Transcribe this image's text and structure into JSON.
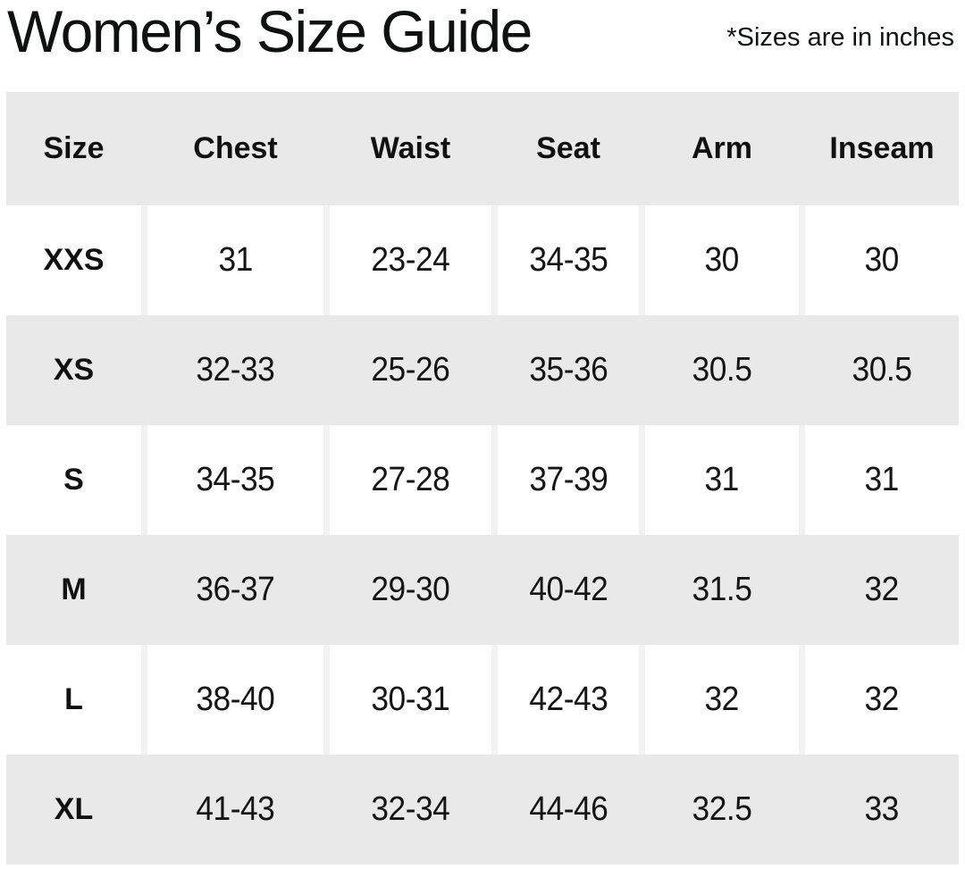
{
  "page": {
    "title": "Women’s Size Guide",
    "note": "*Sizes are in inches"
  },
  "colors": {
    "row_band_gray": "#e9e9e9",
    "column_gap_gray": "#f2f2f2",
    "cell_white": "#ffffff",
    "text": "#111111",
    "background": "#ffffff"
  },
  "chart_data": {
    "type": "table",
    "title": "Women’s Size Guide",
    "note": "*Sizes are in inches",
    "units": "inches",
    "columns": [
      "Size",
      "Chest",
      "Waist",
      "Seat",
      "Arm",
      "Inseam"
    ],
    "rows": [
      [
        "XXS",
        "31",
        "23-24",
        "34-35",
        "30",
        "30"
      ],
      [
        "XS",
        "32-33",
        "25-26",
        "35-36",
        "30.5",
        "30.5"
      ],
      [
        "S",
        "34-35",
        "27-28",
        "37-39",
        "31",
        "31"
      ],
      [
        "M",
        "36-37",
        "29-30",
        "40-42",
        "31.5",
        "32"
      ],
      [
        "L",
        "38-40",
        "30-31",
        "42-43",
        "32",
        "32"
      ],
      [
        "XL",
        "41-43",
        "32-34",
        "44-46",
        "32.5",
        "33"
      ]
    ],
    "layout": {
      "striped": true,
      "stripe_order": [
        "header-gray",
        "white",
        "gray",
        "white",
        "gray",
        "white",
        "gray"
      ],
      "grid": false,
      "legend": false
    }
  }
}
